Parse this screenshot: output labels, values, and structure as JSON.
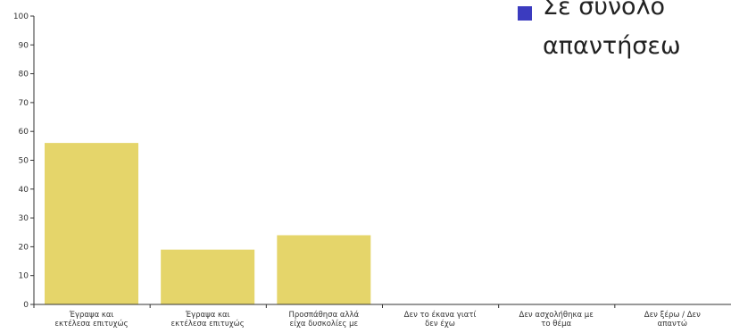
{
  "slide": {
    "bullet_line1": "Σε σύνολο",
    "bullet_line2": "απαντήσεω",
    "bullet_color": "#3b3bbf"
  },
  "chart_data": {
    "type": "bar",
    "categories": [
      [
        "Έγραψα και",
        "εκτέλεσα επιτυχώς"
      ],
      [
        "Έγραψα και",
        "εκτέλεσα επιτυχώς"
      ],
      [
        "Προσπάθησα αλλά",
        "είχα δυσκολίες με"
      ],
      [
        "Δεν το έκανα γιατί",
        "δεν έχω"
      ],
      [
        "Δεν ασχολήθηκα με",
        "το θέμα"
      ],
      [
        "Δεν ξέρω / Δεν",
        "απαντώ"
      ]
    ],
    "values": [
      56,
      19,
      24,
      0,
      0,
      0
    ],
    "ylim": [
      0,
      100
    ],
    "yticks": [
      0,
      10,
      20,
      30,
      40,
      50,
      60,
      70,
      80,
      90,
      100
    ],
    "bar_color": "#e5d56a",
    "title": "",
    "xlabel": "",
    "ylabel": ""
  }
}
